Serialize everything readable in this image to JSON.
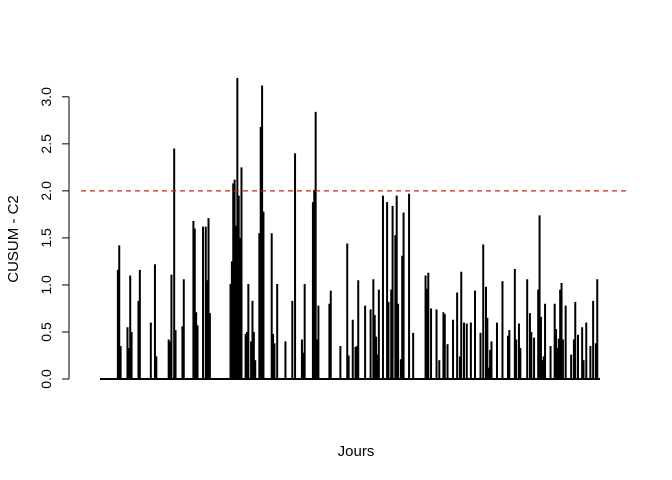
{
  "chart_data": {
    "type": "bar",
    "title": "",
    "xlabel": "Jours",
    "ylabel": "CUSUM - C2",
    "ylim": [
      0,
      3.2
    ],
    "y_ticks": [
      0.0,
      0.5,
      1.0,
      1.5,
      2.0,
      2.5,
      3.0
    ],
    "y_tick_labels": [
      "0.0",
      "0.5",
      "1.0",
      "1.5",
      "2.0",
      "2.5",
      "3.0"
    ],
    "x_axis_drawn": false,
    "x_range": [
      1,
      365
    ],
    "threshold": {
      "value": 2.0,
      "color": "#cc2222",
      "style": "dashed"
    },
    "bar_color": "#000000",
    "series": [
      {
        "x": [
          14,
          15,
          16,
          21,
          22,
          23,
          24,
          29,
          30,
          38,
          41,
          42,
          51,
          52,
          53,
          55,
          56,
          61,
          62,
          69,
          70,
          71,
          72,
          76,
          78,
          79,
          80,
          81,
          96,
          97,
          98,
          99,
          100,
          101,
          102,
          103,
          104,
          107,
          108,
          109,
          111,
          112,
          113,
          114,
          117,
          118,
          119,
          120,
          126,
          127,
          128,
          130,
          136,
          141,
          143,
          148,
          149,
          150,
          156,
          157,
          158,
          159,
          160,
          168,
          169,
          176,
          181,
          182,
          185,
          187,
          188,
          189,
          194,
          198,
          200,
          201,
          202,
          203,
          204,
          207,
          210,
          211,
          213,
          214,
          216,
          217,
          218,
          220,
          221,
          222,
          226,
          229,
          238,
          239,
          240,
          242,
          246,
          248,
          251,
          252,
          254,
          258,
          261,
          263,
          264,
          266,
          268,
          271,
          274,
          278,
          280,
          282,
          283,
          284,
          285,
          286,
          290,
          294,
          298,
          299,
          303,
          304,
          306,
          307,
          312,
          314,
          315,
          317,
          320,
          321,
          322,
          323,
          324,
          325,
          329,
          332,
          333,
          334,
          335,
          336,
          337,
          338,
          340,
          344,
          346,
          347,
          349,
          352,
          353,
          355,
          358,
          360,
          362,
          363
        ],
        "values": [
          1.16,
          1.42,
          0.35,
          0.55,
          0.33,
          1.1,
          0.5,
          0.83,
          1.16,
          0.6,
          1.22,
          0.24,
          0.42,
          0.4,
          1.11,
          2.45,
          0.52,
          0.56,
          1.06,
          1.68,
          1.6,
          0.71,
          0.57,
          1.62,
          1.62,
          1.05,
          1.71,
          0.7,
          1.01,
          1.25,
          2.08,
          2.12,
          1.63,
          3.2,
          1.95,
          1.5,
          2.25,
          0.48,
          0.5,
          1.01,
          0.4,
          0.83,
          0.5,
          0.2,
          1.55,
          2.68,
          3.12,
          1.78,
          1.55,
          0.48,
          0.38,
          1.01,
          0.4,
          0.83,
          2.4,
          0.42,
          0.28,
          1.01,
          1.88,
          2.01,
          2.84,
          0.42,
          0.78,
          0.8,
          0.94,
          0.35,
          1.44,
          0.25,
          0.63,
          0.34,
          0.35,
          1.05,
          0.78,
          0.74,
          1.06,
          0.68,
          0.45,
          0.26,
          0.95,
          1.95,
          1.88,
          0.82,
          0.95,
          1.84,
          1.53,
          1.95,
          0.8,
          0.21,
          1.31,
          1.77,
          1.97,
          0.49,
          1.1,
          0.96,
          1.13,
          0.75,
          0.74,
          0.2,
          0.71,
          0.69,
          0.37,
          0.63,
          0.92,
          0.24,
          1.14,
          0.6,
          0.59,
          0.6,
          0.94,
          0.49,
          1.43,
          0.98,
          0.65,
          0.12,
          0.31,
          0.4,
          0.6,
          1.04,
          0.46,
          0.52,
          1.17,
          0.42,
          0.59,
          0.33,
          1.06,
          0.7,
          0.5,
          0.44,
          0.95,
          1.74,
          0.66,
          0.2,
          0.24,
          0.8,
          0.35,
          0.8,
          0.53,
          0.33,
          0.43,
          0.95,
          1.02,
          0.42,
          0.78,
          0.26,
          0.42,
          0.82,
          0.47,
          0.55,
          0.2,
          0.6,
          0.35,
          0.83,
          0.38,
          1.06
        ]
      }
    ]
  }
}
